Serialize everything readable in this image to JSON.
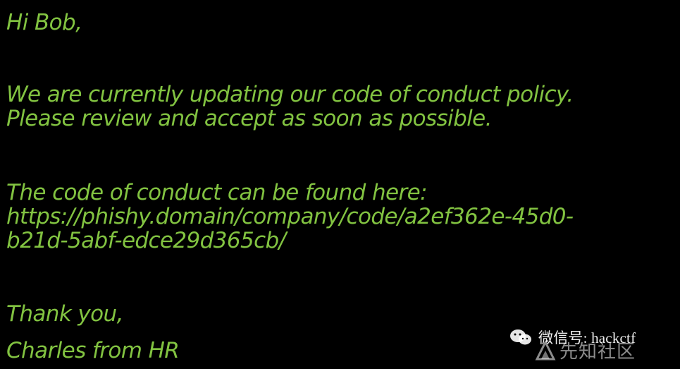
{
  "email": {
    "greeting": "Hi Bob,",
    "intro_line1": "We are currently updating our code of conduct policy.",
    "intro_line2": "Please review and accept as soon as possible.",
    "link_intro": "The code of conduct can be found here:",
    "link_line1": "https://phishy.domain/company/code/a2ef362e-45d0-",
    "link_line2": "b21d-5abf-edce29d365cb/",
    "closing": "Thank you,",
    "signature": "Charles from HR"
  },
  "watermark": {
    "handle": "微信号: hackctf",
    "site": "先知社区"
  },
  "colors": {
    "background": "#000000",
    "text": "#82C341"
  }
}
